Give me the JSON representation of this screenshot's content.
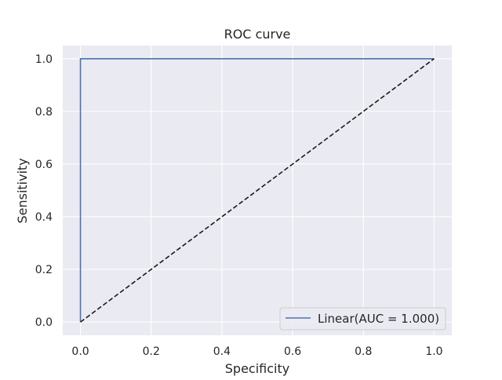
{
  "chart_data": {
    "type": "line",
    "title": "ROC curve",
    "xlabel": "Specificity",
    "ylabel": "Sensitivity",
    "xlim": [
      -0.05,
      1.05
    ],
    "ylim": [
      -0.05,
      1.05
    ],
    "grid": true,
    "legend_position": "lower-right",
    "x_ticks": [
      "0.0",
      "0.2",
      "0.4",
      "0.6",
      "0.8",
      "1.0"
    ],
    "y_ticks": [
      "0.0",
      "0.2",
      "0.4",
      "0.6",
      "0.8",
      "1.0"
    ],
    "series": [
      {
        "name": "Linear(AUC = 1.000)",
        "color": "#4c72b0",
        "style": "solid",
        "x": [
          0.0,
          0.0,
          1.0
        ],
        "y": [
          0.0,
          1.0,
          1.0
        ]
      },
      {
        "color": "#1a1a1a",
        "style": "dashed",
        "x": [
          0.0,
          1.0
        ],
        "y": [
          0.0,
          1.0
        ]
      }
    ]
  }
}
